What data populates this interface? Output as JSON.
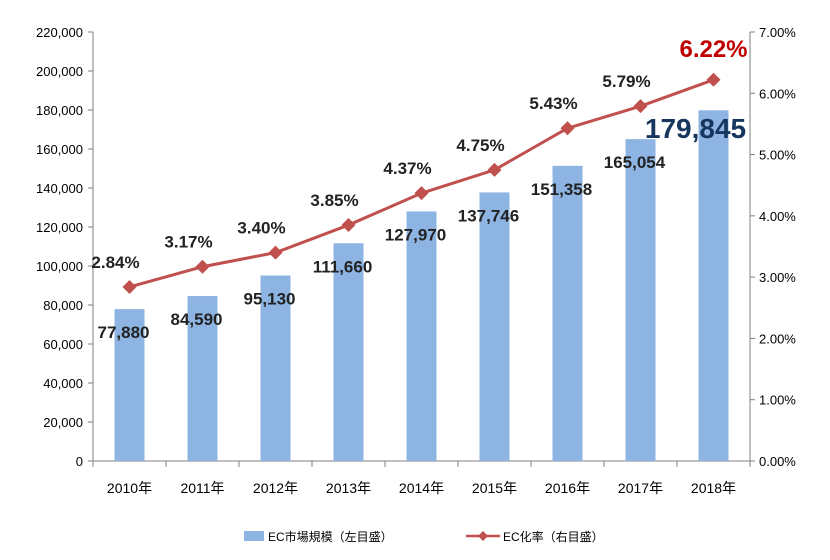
{
  "chart_data": {
    "type": "bar+line",
    "categories": [
      "2010年",
      "2011年",
      "2012年",
      "2013年",
      "2014年",
      "2015年",
      "2016年",
      "2017年",
      "2018年"
    ],
    "series": [
      {
        "name": "EC市場規模（左目盛）",
        "type": "bar",
        "axis": "left",
        "values": [
          77880,
          84590,
          95130,
          111660,
          127970,
          137746,
          151358,
          165054,
          179845
        ],
        "labels": [
          "77,880",
          "84,590",
          "95,130",
          "111,660",
          "127,970",
          "137,746",
          "151,358",
          "165,054",
          "179,845"
        ]
      },
      {
        "name": "EC化率（右目盛）",
        "type": "line",
        "axis": "right",
        "values": [
          2.84,
          3.17,
          3.4,
          3.85,
          4.37,
          4.75,
          5.43,
          5.79,
          6.22
        ],
        "labels": [
          "2.84%",
          "3.17%",
          "3.40%",
          "3.85%",
          "4.37%",
          "4.75%",
          "5.43%",
          "5.79%",
          "6.22%"
        ]
      }
    ],
    "y_left": {
      "range": [
        0,
        220000
      ],
      "ticks": [
        "0",
        "20,000",
        "40,000",
        "60,000",
        "80,000",
        "100,000",
        "120,000",
        "140,000",
        "160,000",
        "180,000",
        "200,000",
        "220,000"
      ]
    },
    "y_right": {
      "range": [
        0,
        7
      ],
      "ticks": [
        "0.00%",
        "1.00%",
        "2.00%",
        "3.00%",
        "4.00%",
        "5.00%",
        "6.00%",
        "7.00%"
      ]
    },
    "grid": false,
    "legend_position": "bottom",
    "highlight": {
      "index": 8,
      "bar_label_color": "#17365D",
      "line_label_color": "#C00000"
    },
    "colors": {
      "bar": "#8DB4E2",
      "line": "#C0504D",
      "text": "#222222",
      "axis": "#7F7F7F"
    }
  }
}
